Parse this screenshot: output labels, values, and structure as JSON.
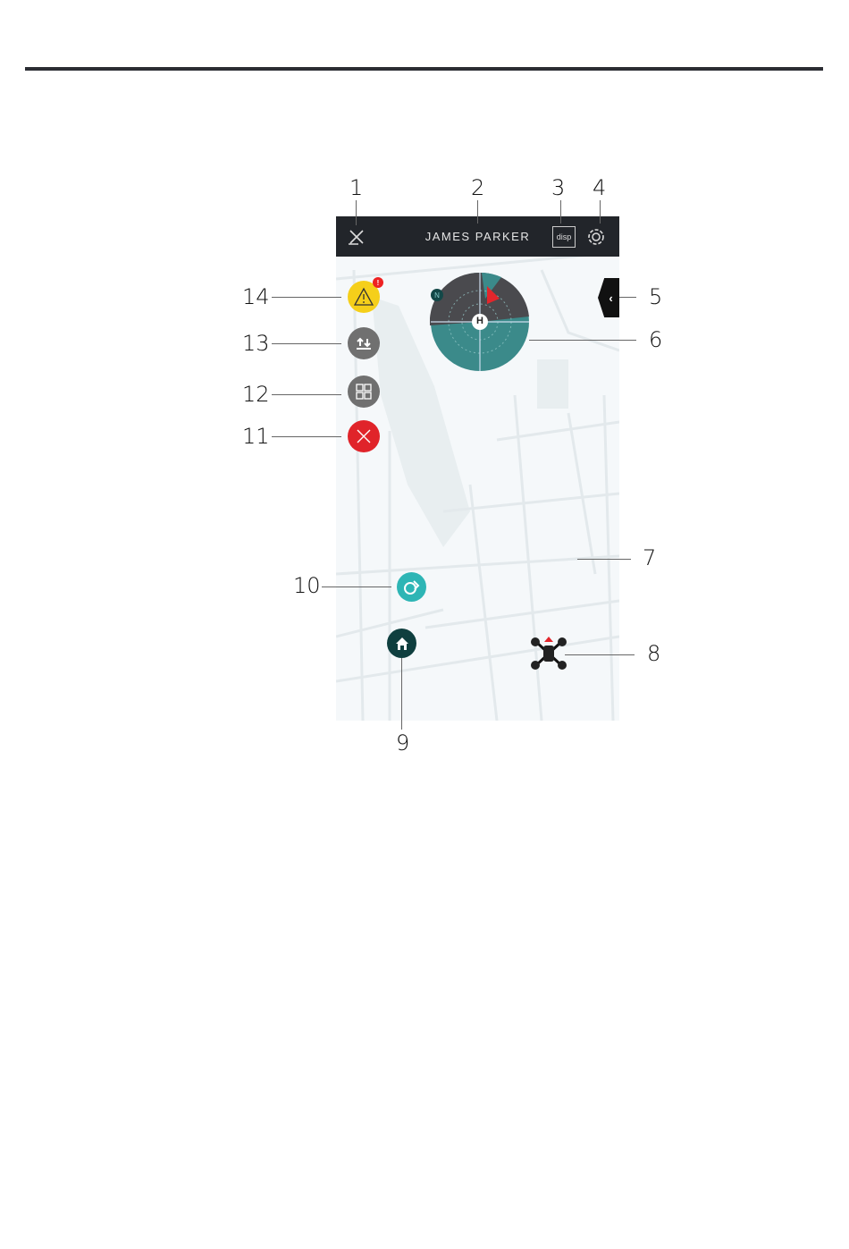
{
  "callouts": [
    "1",
    "2",
    "3",
    "4",
    "5",
    "6",
    "7",
    "8",
    "9",
    "10",
    "11",
    "12",
    "13",
    "14"
  ],
  "header": {
    "title": "JAMES PARKER",
    "disp_label": "disp"
  },
  "radar": {
    "home_label": "H",
    "north_label": "N"
  },
  "warning_badge": "!",
  "colors": {
    "header": "#22252a",
    "map": "#f5f8fa",
    "warning": "#f5cf1a",
    "grey_button": "#707070",
    "close": "#e0242a",
    "teal": "#2eb5b5",
    "home": "#0f3f3f",
    "radar_dark": "#4a4a4e",
    "radar_teal": "#3b8a8a",
    "drone_heading": "#e3262c"
  },
  "icons": {
    "1": "satellite-icon",
    "3": "display-icon",
    "4": "settings-gear-icon",
    "5": "chevron-left-icon",
    "8": "drone-icon",
    "9": "home-icon",
    "10": "map-switch-icon",
    "11": "close-icon",
    "12": "grid-icon",
    "13": "takeoff-landing-icon",
    "14": "warning-icon"
  }
}
